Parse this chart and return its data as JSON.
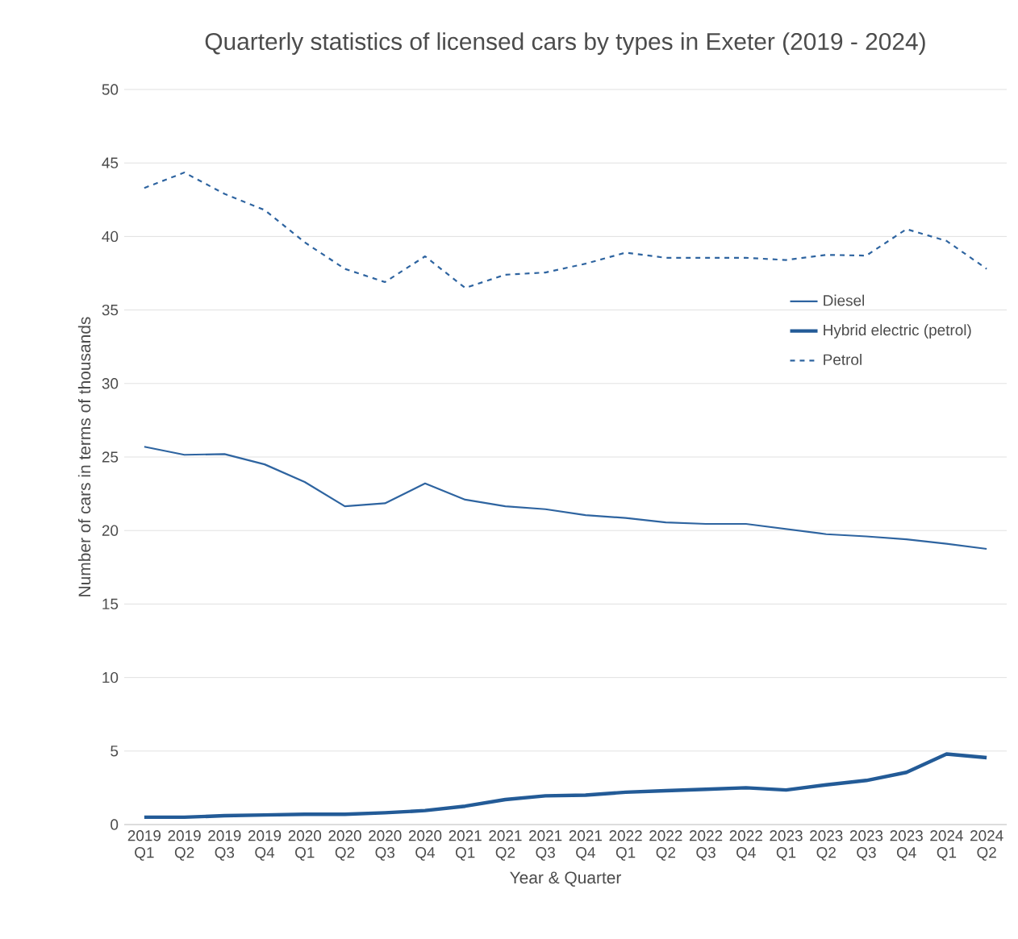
{
  "chart_data": {
    "type": "line",
    "title": "Quarterly statistics of licensed cars by types in Exeter (2019 - 2024)",
    "xlabel": "Year & Quarter",
    "ylabel": "Number of cars in terms of thousands",
    "categories": [
      "2019 Q1",
      "2019 Q2",
      "2019 Q3",
      "2019 Q4",
      "2020 Q1",
      "2020 Q2",
      "2020 Q3",
      "2020 Q4",
      "2021 Q1",
      "2021 Q2",
      "2021 Q3",
      "2021 Q4",
      "2022 Q1",
      "2022 Q2",
      "2022 Q3",
      "2022 Q4",
      "2023 Q1",
      "2023 Q2",
      "2023 Q3",
      "2023 Q4",
      "2024 Q1",
      "2024 Q2"
    ],
    "series": [
      {
        "name": "Diesel",
        "color": "#2e64a0",
        "line_style": "solid",
        "values": [
          25.7,
          25.15,
          25.2,
          24.5,
          23.3,
          21.65,
          21.85,
          23.2,
          22.1,
          21.65,
          21.45,
          21.05,
          20.85,
          20.55,
          20.45,
          20.45,
          20.1,
          19.75,
          19.6,
          19.4,
          19.1,
          18.75
        ]
      },
      {
        "name": "Hybrid electric (petrol)",
        "color": "#235b97",
        "line_style": "solid",
        "values": [
          0.5,
          0.5,
          0.6,
          0.65,
          0.7,
          0.7,
          0.8,
          0.95,
          1.25,
          1.7,
          1.95,
          2.0,
          2.2,
          2.3,
          2.4,
          2.5,
          2.35,
          2.7,
          3.0,
          3.55,
          4.8,
          4.55
        ]
      },
      {
        "name": "Petrol",
        "color": "#2e64a0",
        "line_style": "dashed",
        "values": [
          43.3,
          44.35,
          42.9,
          41.8,
          39.6,
          37.8,
          36.9,
          38.65,
          36.5,
          37.4,
          37.55,
          38.15,
          38.9,
          38.55,
          38.55,
          38.55,
          38.4,
          38.75,
          38.7,
          40.5,
          39.7,
          37.8
        ]
      }
    ],
    "ylim": [
      0,
      50
    ],
    "yticks": [
      0,
      5,
      10,
      15,
      20,
      25,
      30,
      35,
      40,
      45,
      50
    ],
    "grid": "y",
    "legend": "right"
  }
}
